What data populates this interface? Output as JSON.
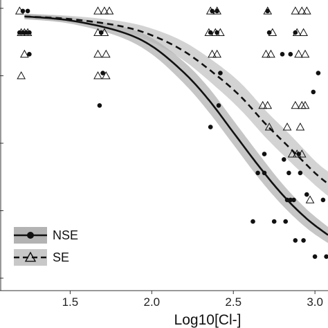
{
  "chart_data": {
    "type": "scatter",
    "title": "",
    "xlabel": "Log10[Cl-]",
    "ylabel": "",
    "xlim": [
      1.07,
      3.08
    ],
    "ylim": [
      0,
      1
    ],
    "x_ticks": [
      "1.5",
      "2.0",
      "2.5",
      "3.0"
    ],
    "grid": false,
    "legend": {
      "placement": "bottom-left",
      "entries": [
        "NSE",
        "SE"
      ]
    },
    "colors": {
      "nse_band": "#b3b3b3",
      "se_band": "#c8c8c8",
      "line": "#111111",
      "point": "#111111"
    },
    "series": [
      {
        "name": "NSE",
        "marker": "filled-circle",
        "line_style": "solid",
        "curve": {
          "x": [
            1.22,
            1.5,
            1.8,
            2.0,
            2.2,
            2.35,
            2.5,
            2.65,
            2.8,
            2.95,
            3.08
          ],
          "y": [
            0.97,
            0.955,
            0.915,
            0.86,
            0.76,
            0.66,
            0.54,
            0.42,
            0.31,
            0.22,
            0.16
          ],
          "band_half_width": [
            0.01,
            0.012,
            0.02,
            0.03,
            0.04,
            0.045,
            0.045,
            0.045,
            0.04,
            0.035,
            0.03
          ]
        },
        "points": [
          {
            "x": 1.21,
            "y": 0.99
          },
          {
            "x": 1.24,
            "y": 0.99
          },
          {
            "x": 1.19,
            "y": 0.91
          },
          {
            "x": 1.21,
            "y": 0.91
          },
          {
            "x": 1.23,
            "y": 0.91
          },
          {
            "x": 1.25,
            "y": 0.91
          },
          {
            "x": 1.25,
            "y": 0.83
          },
          {
            "x": 1.69,
            "y": 0.91
          },
          {
            "x": 1.7,
            "y": 0.76
          },
          {
            "x": 1.68,
            "y": 0.64
          },
          {
            "x": 2.37,
            "y": 0.99
          },
          {
            "x": 2.4,
            "y": 0.99
          },
          {
            "x": 2.36,
            "y": 0.91
          },
          {
            "x": 2.4,
            "y": 0.91
          },
          {
            "x": 2.42,
            "y": 0.76
          },
          {
            "x": 2.41,
            "y": 0.64
          },
          {
            "x": 2.36,
            "y": 0.56
          },
          {
            "x": 2.69,
            "y": 0.46
          },
          {
            "x": 2.65,
            "y": 0.39
          },
          {
            "x": 2.69,
            "y": 0.39
          },
          {
            "x": 2.62,
            "y": 0.21
          },
          {
            "x": 2.75,
            "y": 0.21
          },
          {
            "x": 2.71,
            "y": 0.99
          },
          {
            "x": 2.72,
            "y": 0.91
          },
          {
            "x": 2.8,
            "y": 0.83
          },
          {
            "x": 2.88,
            "y": 0.91
          },
          {
            "x": 2.85,
            "y": 0.83
          },
          {
            "x": 2.81,
            "y": 0.44
          },
          {
            "x": 2.84,
            "y": 0.39
          },
          {
            "x": 2.9,
            "y": 0.46
          },
          {
            "x": 2.91,
            "y": 0.39
          },
          {
            "x": 2.95,
            "y": 0.31
          },
          {
            "x": 2.83,
            "y": 0.29
          },
          {
            "x": 2.85,
            "y": 0.29
          },
          {
            "x": 2.87,
            "y": 0.29
          },
          {
            "x": 2.82,
            "y": 0.21
          },
          {
            "x": 2.88,
            "y": 0.14
          },
          {
            "x": 2.93,
            "y": 0.14
          },
          {
            "x": 2.99,
            "y": 0.69
          },
          {
            "x": 3.02,
            "y": 0.76
          },
          {
            "x": 3.0,
            "y": 0.08
          },
          {
            "x": 3.07,
            "y": 0.08
          },
          {
            "x": 3.05,
            "y": 0.29
          }
        ]
      },
      {
        "name": "SE",
        "marker": "open-triangle",
        "line_style": "dashed",
        "curve": {
          "x": [
            1.22,
            1.5,
            1.8,
            2.0,
            2.2,
            2.4,
            2.55,
            2.7,
            2.85,
            3.0,
            3.08
          ],
          "y": [
            0.97,
            0.96,
            0.935,
            0.9,
            0.84,
            0.75,
            0.67,
            0.57,
            0.48,
            0.39,
            0.35
          ],
          "band_half_width": [
            0.01,
            0.012,
            0.018,
            0.025,
            0.035,
            0.045,
            0.05,
            0.05,
            0.05,
            0.045,
            0.045
          ]
        },
        "points": [
          {
            "x": 1.19,
            "y": 0.99
          },
          {
            "x": 1.2,
            "y": 0.91
          },
          {
            "x": 1.22,
            "y": 0.91
          },
          {
            "x": 1.24,
            "y": 0.91
          },
          {
            "x": 1.22,
            "y": 0.83
          },
          {
            "x": 1.2,
            "y": 0.75
          },
          {
            "x": 1.67,
            "y": 0.99
          },
          {
            "x": 1.71,
            "y": 0.99
          },
          {
            "x": 1.74,
            "y": 0.99
          },
          {
            "x": 1.67,
            "y": 0.91
          },
          {
            "x": 1.71,
            "y": 0.91
          },
          {
            "x": 1.67,
            "y": 0.83
          },
          {
            "x": 1.72,
            "y": 0.83
          },
          {
            "x": 1.67,
            "y": 0.75
          },
          {
            "x": 1.72,
            "y": 0.75
          },
          {
            "x": 2.36,
            "y": 0.99
          },
          {
            "x": 2.4,
            "y": 0.99
          },
          {
            "x": 2.35,
            "y": 0.91
          },
          {
            "x": 2.39,
            "y": 0.91
          },
          {
            "x": 2.42,
            "y": 0.91
          },
          {
            "x": 2.37,
            "y": 0.83
          },
          {
            "x": 2.4,
            "y": 0.83
          },
          {
            "x": 2.71,
            "y": 0.99
          },
          {
            "x": 2.74,
            "y": 0.91
          },
          {
            "x": 2.7,
            "y": 0.83
          },
          {
            "x": 2.73,
            "y": 0.83
          },
          {
            "x": 2.68,
            "y": 0.64
          },
          {
            "x": 2.71,
            "y": 0.64
          },
          {
            "x": 2.72,
            "y": 0.56
          },
          {
            "x": 2.88,
            "y": 0.99
          },
          {
            "x": 2.92,
            "y": 0.99
          },
          {
            "x": 2.95,
            "y": 0.99
          },
          {
            "x": 2.89,
            "y": 0.91
          },
          {
            "x": 2.93,
            "y": 0.91
          },
          {
            "x": 2.9,
            "y": 0.83
          },
          {
            "x": 2.94,
            "y": 0.83
          },
          {
            "x": 2.88,
            "y": 0.64
          },
          {
            "x": 2.92,
            "y": 0.64
          },
          {
            "x": 2.94,
            "y": 0.64
          },
          {
            "x": 2.83,
            "y": 0.56
          },
          {
            "x": 2.91,
            "y": 0.56
          },
          {
            "x": 2.86,
            "y": 0.46
          },
          {
            "x": 2.89,
            "y": 0.46
          },
          {
            "x": 2.92,
            "y": 0.46
          },
          {
            "x": 2.97,
            "y": 0.29
          }
        ]
      }
    ]
  }
}
